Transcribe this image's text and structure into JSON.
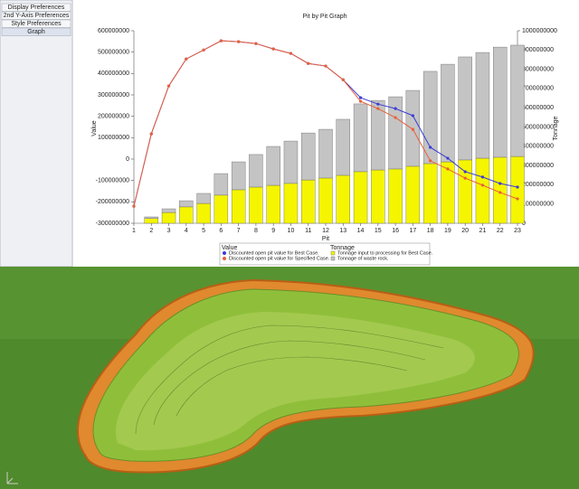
{
  "sidebar": {
    "buttons": [
      "Display Preferences",
      "2nd Y-Axis Preferences",
      "Style Preferences",
      "Graph"
    ]
  },
  "chart_data": {
    "type": "combo",
    "title": "Pit by Pit Graph",
    "x_label": "Pit",
    "y_label": "Value",
    "y2_label": "Tonnage",
    "x": [
      1,
      2,
      3,
      4,
      5,
      6,
      7,
      8,
      9,
      10,
      11,
      12,
      13,
      14,
      15,
      16,
      17,
      18,
      19,
      20,
      21,
      22,
      23
    ],
    "xlim": [
      1,
      23
    ],
    "ylim": [
      -300000000,
      600000000
    ],
    "yticks": [
      -300000000,
      -200000000,
      -100000000,
      0,
      100000000,
      200000000,
      300000000,
      400000000,
      500000000,
      600000000
    ],
    "y2lim": [
      0,
      1000000000
    ],
    "y2ticks": [
      0,
      100000000,
      200000000,
      300000000,
      400000000,
      500000000,
      600000000,
      700000000,
      800000000,
      900000000,
      1000000000
    ],
    "legend_titles": [
      "Value",
      "Tonnage"
    ],
    "series": [
      {
        "name": "Discounted open pit value for Best Case.",
        "type": "line",
        "color": "#3c3cd8",
        "values": [
          -220000000,
          118000000,
          342000000,
          468000000,
          510000000,
          553000000,
          549000000,
          540000000,
          515000000,
          494000000,
          447000000,
          435000000,
          371000000,
          287000000,
          257000000,
          236000000,
          203000000,
          55000000,
          4000000,
          -59000000,
          -84000000,
          -114000000,
          -131000000
        ]
      },
      {
        "name": "Discounted open pit value for Specified Case.",
        "type": "line",
        "color": "#e8603a",
        "values": [
          -220000000,
          118000000,
          342000000,
          468000000,
          510000000,
          553000000,
          549000000,
          540000000,
          515000000,
          494000000,
          447000000,
          435000000,
          371000000,
          270000000,
          236000000,
          194000000,
          139000000,
          -8000000,
          -46000000,
          -89000000,
          -122000000,
          -156000000,
          -186000000
        ]
      },
      {
        "name": "Tonnage input to processing for Best Case.",
        "type": "bar",
        "axis": "y2",
        "color": "#f5f500",
        "values": [
          null,
          25000000,
          56000000,
          85000000,
          103000000,
          146000000,
          174000000,
          188000000,
          197000000,
          207000000,
          225000000,
          235000000,
          249000000,
          268000000,
          277000000,
          282000000,
          296000000,
          310000000,
          319000000,
          329000000,
          338000000,
          343000000,
          347000000
        ]
      },
      {
        "name": "Tonnage of waste rock.",
        "type": "bar",
        "axis": "y2",
        "color": "#c4c4c4",
        "values": [
          null,
          8000000,
          19000000,
          32000000,
          52000000,
          112000000,
          145000000,
          169000000,
          202000000,
          220000000,
          244000000,
          253000000,
          291000000,
          352000000,
          361000000,
          375000000,
          394000000,
          479000000,
          507000000,
          535000000,
          549000000,
          572000000,
          578000000
        ]
      }
    ]
  }
}
